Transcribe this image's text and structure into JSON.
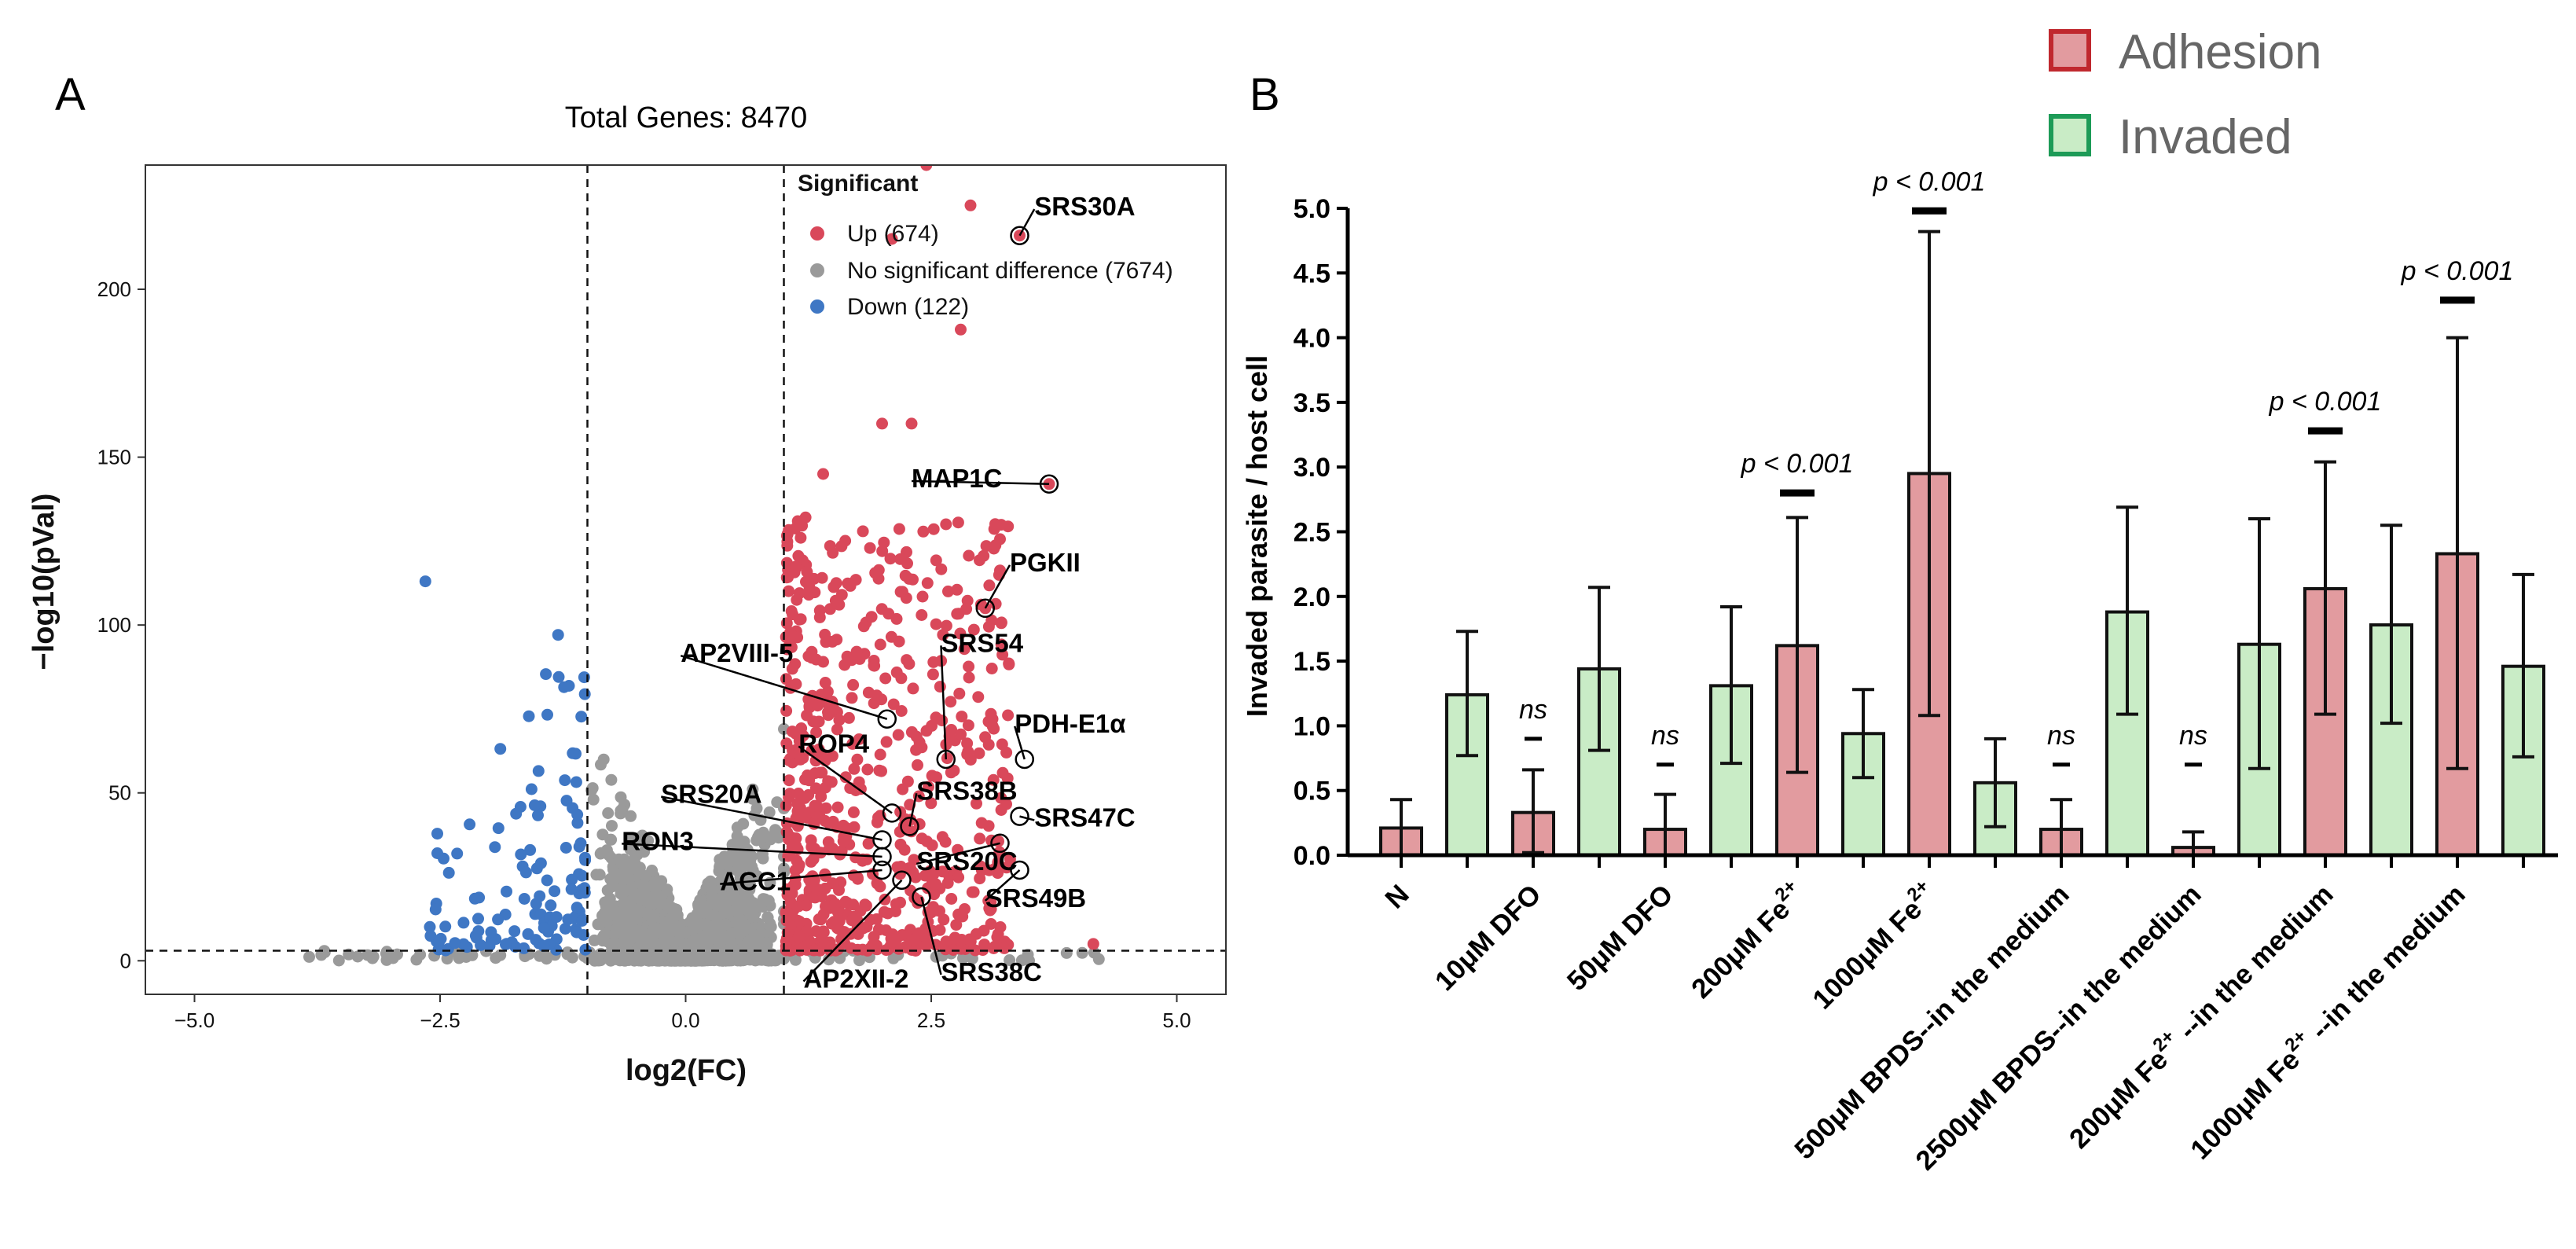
{
  "panel_labels": {
    "a": "A",
    "b": "B"
  },
  "colors": {
    "up": "#d9485a",
    "nosig": "#9a9a9a",
    "down": "#3f77c4",
    "adhesion_fill": "#e29b9f",
    "adhesion_edge": "#c0282e",
    "invaded_fill": "#c9ecc6",
    "invaded_edge": "#1d9b57"
  },
  "chart_data": [
    {
      "type": "scatter",
      "title": "Total Genes: 8470",
      "xlabel": "log2(FC)",
      "ylabel": "−log10(pVal)",
      "xlim": [
        -5.5,
        5.5
      ],
      "ylim": [
        -10,
        237
      ],
      "xticks": [
        -5.0,
        -2.5,
        0.0,
        2.5,
        5.0
      ],
      "xtick_labels": [
        "−5.0",
        "−2.5",
        "0.0",
        "2.5",
        "5.0"
      ],
      "yticks": [
        0,
        50,
        100,
        150,
        200
      ],
      "thresholds": {
        "x": [
          -1,
          1
        ],
        "y": 3
      },
      "legend": {
        "title": "Significant",
        "position": "top-right",
        "entries": [
          {
            "key": "up",
            "label": "Up (674)",
            "count": 674
          },
          {
            "key": "nosig",
            "label": "No significant difference (7674)",
            "count": 7674
          },
          {
            "key": "down",
            "label": "Down (122)",
            "count": 122
          }
        ]
      },
      "highlighted_genes": [
        {
          "name": "SRS30A",
          "x": 3.4,
          "y": 216,
          "lx": 3.55,
          "ly": 222
        },
        {
          "name": "MAP1C",
          "x": 3.7,
          "y": 142,
          "lx": 2.3,
          "ly": 141
        },
        {
          "name": "PGKII",
          "x": 3.05,
          "y": 105,
          "lx": 3.3,
          "ly": 116
        },
        {
          "name": "SRS54",
          "x": 2.65,
          "y": 60,
          "lx": 2.6,
          "ly": 92
        },
        {
          "name": "AP2VIII-5",
          "x": 2.05,
          "y": 72,
          "lx": -0.05,
          "ly": 89
        },
        {
          "name": "PDH-E1α",
          "x": 3.45,
          "y": 60,
          "lx": 3.35,
          "ly": 68
        },
        {
          "name": "ROP4",
          "x": 2.1,
          "y": 44,
          "lx": 1.15,
          "ly": 62
        },
        {
          "name": "SRS38B",
          "x": 2.28,
          "y": 40,
          "lx": 2.35,
          "ly": 48
        },
        {
          "name": "SRS20A",
          "x": 2.0,
          "y": 36,
          "lx": -0.25,
          "ly": 47
        },
        {
          "name": "SRS47C",
          "x": 3.4,
          "y": 43,
          "lx": 3.55,
          "ly": 40
        },
        {
          "name": "RON3",
          "x": 2.0,
          "y": 31,
          "lx": -0.65,
          "ly": 33
        },
        {
          "name": "SRS20C",
          "x": 3.2,
          "y": 35,
          "lx": 2.35,
          "ly": 27
        },
        {
          "name": "ACC1",
          "x": 2.0,
          "y": 27,
          "lx": 0.35,
          "ly": 21
        },
        {
          "name": "SRS49B",
          "x": 3.4,
          "y": 27,
          "lx": 3.05,
          "ly": 16
        },
        {
          "name": "AP2XII-2",
          "x": 2.2,
          "y": 24,
          "lx": 1.2,
          "ly": -8
        },
        {
          "name": "SRS38C",
          "x": 2.4,
          "y": 19,
          "lx": 2.6,
          "ly": -6
        }
      ]
    },
    {
      "type": "bar",
      "ylabel": "Invaded parasite / host cell",
      "ylim": [
        0,
        5.0
      ],
      "yticks": [
        "0.0",
        "0.5",
        "1.0",
        "1.5",
        "2.0",
        "2.5",
        "3.0",
        "3.5",
        "4.0",
        "4.5",
        "5.0"
      ],
      "legend": {
        "position": "top-right",
        "entries": [
          {
            "key": "adhesion",
            "label": "Adhesion"
          },
          {
            "key": "invaded",
            "label": "Invaded"
          }
        ]
      },
      "categories": [
        "N",
        "10μM DFO",
        "50μM DFO",
        "200μM Fe",
        "1000μM Fe",
        "500μM BPDS--in the medium",
        "2500μM BPDS--in the medium",
        "200μM Fe --in the medium",
        "1000μM Fe --in the medium"
      ],
      "category_superscripts": [
        "",
        "",
        "",
        "2+",
        "2+",
        "",
        "",
        "2+",
        "2+"
      ],
      "bars": [
        {
          "series": "adhesion",
          "value": 0.21,
          "lo": 0.0,
          "hi": 0.43
        },
        {
          "series": "invaded",
          "value": 1.24,
          "lo": 0.77,
          "hi": 1.73
        },
        {
          "series": "adhesion",
          "value": 0.33,
          "lo": 0.02,
          "hi": 0.66
        },
        {
          "series": "invaded",
          "value": 1.44,
          "lo": 0.81,
          "hi": 2.07
        },
        {
          "series": "adhesion",
          "value": 0.2,
          "lo": 0.0,
          "hi": 0.47
        },
        {
          "series": "invaded",
          "value": 1.31,
          "lo": 0.71,
          "hi": 1.92
        },
        {
          "series": "adhesion",
          "value": 1.62,
          "lo": 0.64,
          "hi": 2.61
        },
        {
          "series": "invaded",
          "value": 0.94,
          "lo": 0.6,
          "hi": 1.28
        },
        {
          "series": "adhesion",
          "value": 2.95,
          "lo": 1.08,
          "hi": 4.82
        },
        {
          "series": "invaded",
          "value": 0.56,
          "lo": 0.22,
          "hi": 0.9
        },
        {
          "series": "adhesion",
          "value": 0.2,
          "lo": 0.0,
          "hi": 0.43
        },
        {
          "series": "invaded",
          "value": 1.88,
          "lo": 1.09,
          "hi": 2.69
        },
        {
          "series": "adhesion",
          "value": 0.06,
          "lo": 0.0,
          "hi": 0.18
        },
        {
          "series": "invaded",
          "value": 1.63,
          "lo": 0.67,
          "hi": 2.6
        },
        {
          "series": "adhesion",
          "value": 2.06,
          "lo": 1.09,
          "hi": 3.04
        },
        {
          "series": "invaded",
          "value": 1.78,
          "lo": 1.02,
          "hi": 2.55
        },
        {
          "series": "adhesion",
          "value": 2.33,
          "lo": 0.67,
          "hi": 4.0
        },
        {
          "series": "invaded",
          "value": 1.46,
          "lo": 0.76,
          "hi": 2.17
        }
      ],
      "annotations": [
        {
          "bar": 2,
          "text": "ns",
          "y": 0.9
        },
        {
          "bar": 4,
          "text": "ns",
          "y": 0.7
        },
        {
          "bar": 6,
          "text": "p < 0.001",
          "y": 2.8
        },
        {
          "bar": 8,
          "text": "p < 0.001",
          "y": 4.98
        },
        {
          "bar": 10,
          "text": "ns",
          "y": 0.7
        },
        {
          "bar": 12,
          "text": "ns",
          "y": 0.7
        },
        {
          "bar": 14,
          "text": "p < 0.001",
          "y": 3.28
        },
        {
          "bar": 16,
          "text": "p < 0.001",
          "y": 4.29
        }
      ]
    }
  ]
}
